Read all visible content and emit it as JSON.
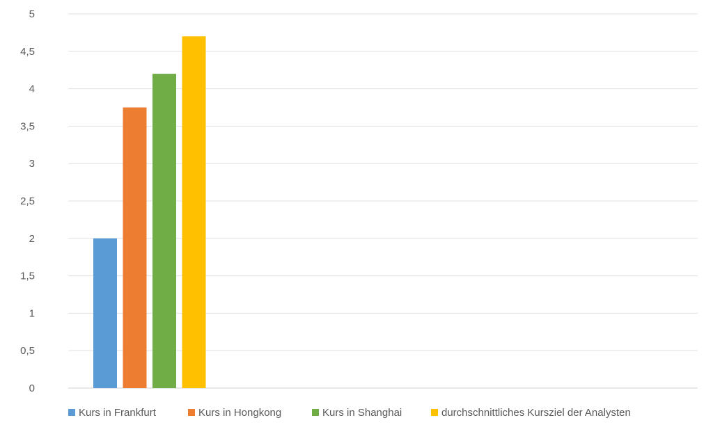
{
  "chart_data": {
    "type": "bar",
    "categories": [
      ""
    ],
    "series": [
      {
        "name": "Kurs in Frankfurt",
        "values": [
          2.0
        ],
        "color": "#5b9bd5"
      },
      {
        "name": "Kurs in Hongkong",
        "values": [
          3.75
        ],
        "color": "#ed7d31"
      },
      {
        "name": "Kurs in Shanghai",
        "values": [
          4.2
        ],
        "color": "#70ad47"
      },
      {
        "name": "durchschnittliches Kursziel der Analysten",
        "values": [
          4.7
        ],
        "color": "#ffc000"
      }
    ],
    "y_ticks": [
      "0",
      "0,5",
      "1",
      "1,5",
      "2",
      "2,5",
      "3",
      "3,5",
      "4",
      "4,5",
      "5"
    ],
    "ylim": [
      0,
      5
    ],
    "grid": true,
    "legend_position": "bottom-left"
  }
}
